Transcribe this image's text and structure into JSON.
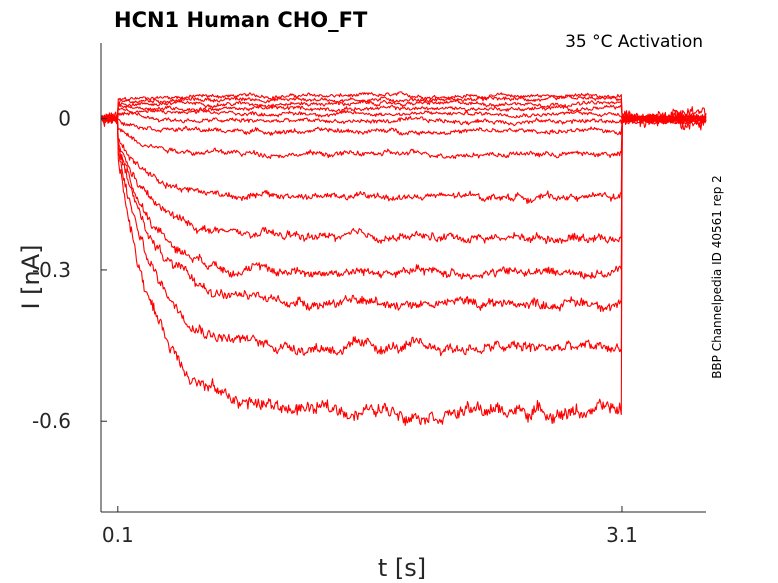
{
  "chart_data": {
    "type": "line",
    "title": "HCN1  Human  CHO_FT",
    "subtitle": "35 °C  Activation",
    "side_label": "BBP Channelpedia ID 40561 rep 2",
    "xlabel": "t [s]",
    "ylabel": "I [nA]",
    "xlim": [
      0.0,
      3.6
    ],
    "ylim": [
      -0.78,
      0.15
    ],
    "xticks": [
      0.1,
      3.1
    ],
    "xtick_labels": [
      "0.1",
      "3.1"
    ],
    "yticks": [
      0,
      -0.3,
      -0.6
    ],
    "ytick_labels": [
      "0",
      "-0.3",
      "-0.6"
    ],
    "grid": false,
    "color": "#ff0000",
    "step_on": 0.1,
    "step_off": 3.1,
    "series": [
      {
        "holding": 0.0,
        "start": 0.035,
        "end": 0.045,
        "noise": 0.005
      },
      {
        "holding": 0.0,
        "start": 0.03,
        "end": 0.038,
        "noise": 0.005
      },
      {
        "holding": 0.0,
        "start": 0.03,
        "end": 0.03,
        "noise": 0.005
      },
      {
        "holding": 0.0,
        "start": 0.025,
        "end": 0.02,
        "noise": 0.005
      },
      {
        "holding": 0.0,
        "start": 0.02,
        "end": 0.01,
        "noise": 0.005
      },
      {
        "holding": 0.0,
        "start": 0.01,
        "end": -0.005,
        "noise": 0.006
      },
      {
        "holding": 0.0,
        "start": 0.0,
        "end": -0.025,
        "noise": 0.006
      },
      {
        "holding": 0.0,
        "start": -0.02,
        "end": -0.07,
        "noise": 0.007
      },
      {
        "holding": 0.0,
        "start": -0.04,
        "end": -0.155,
        "noise": 0.009
      },
      {
        "holding": 0.0,
        "start": -0.05,
        "end": -0.235,
        "noise": 0.011
      },
      {
        "holding": 0.0,
        "start": -0.05,
        "end": -0.305,
        "noise": 0.012
      },
      {
        "holding": 0.0,
        "start": -0.05,
        "end": -0.365,
        "noise": 0.013
      },
      {
        "holding": 0.0,
        "start": -0.06,
        "end": -0.455,
        "noise": 0.015
      },
      {
        "holding": 0.0,
        "start": -0.07,
        "end": -0.58,
        "noise": 0.018
      }
    ]
  }
}
